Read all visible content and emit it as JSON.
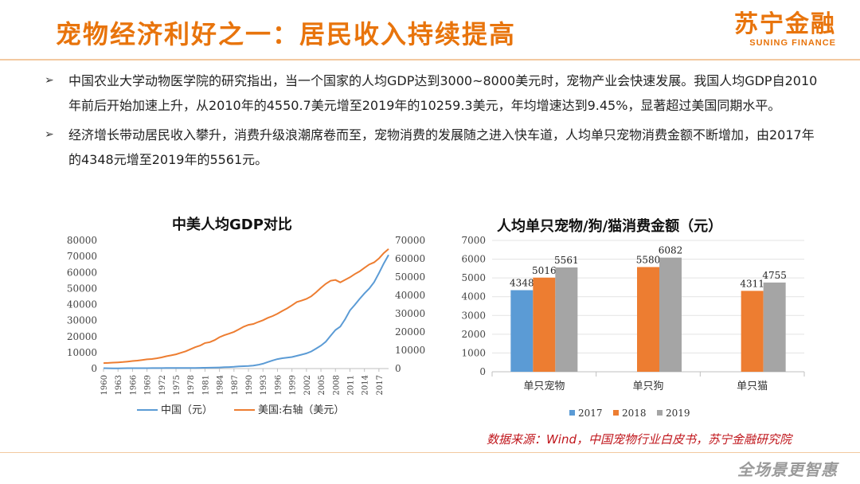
{
  "header": {
    "title": "宠物经济利好之一：居民收入持续提高",
    "logo_cn": "苏宁金融",
    "logo_en": "SUNING FINANCE"
  },
  "bullets": [
    "中国农业大学动物医学院的研究指出，当一个国家的人均GDP达到3000~8000美元时，宠物产业会快速发展。我国人均GDP自2010年前后开始加速上升，从2010年的4550.7美元增至2019年的10259.3美元，年均增速达到9.45%，显著超过美国同期水平。",
    "经济增长带动居民收入攀升，消费升级浪潮席卷而至，宠物消费的发展随之进入快车道，人均单只宠物消费金额不断增加，由2017年的4348元增至2019年的5561元。"
  ],
  "bullet_mark": "➢",
  "source": "数据来源：Wind，中国宠物行业白皮书，苏宁金融研究院",
  "slogan": "全场景更智惠",
  "chart_data": [
    {
      "type": "line",
      "title": "中美人均GDP对比",
      "x": [
        1960,
        1961,
        1962,
        1963,
        1964,
        1965,
        1966,
        1967,
        1968,
        1969,
        1970,
        1971,
        1972,
        1973,
        1974,
        1975,
        1976,
        1977,
        1978,
        1979,
        1980,
        1981,
        1982,
        1983,
        1984,
        1985,
        1986,
        1987,
        1988,
        1989,
        1990,
        1991,
        1992,
        1993,
        1994,
        1995,
        1996,
        1997,
        1998,
        1999,
        2000,
        2001,
        2002,
        2003,
        2004,
        2005,
        2006,
        2007,
        2008,
        2009,
        2010,
        2011,
        2012,
        2013,
        2014,
        2015,
        2016,
        2017,
        2018,
        2019
      ],
      "x_tick_labels": [
        "1960",
        "1963",
        "1966",
        "1969",
        "1972",
        "1975",
        "1978",
        "1981",
        "1984",
        "1987",
        "1990",
        "1993",
        "1996",
        "1999",
        "2002",
        "2005",
        "2008",
        "2011",
        "2014",
        "2017"
      ],
      "y_left_ticks": [
        0,
        10000,
        20000,
        30000,
        40000,
        50000,
        60000,
        70000,
        80000
      ],
      "y_right_ticks": [
        0,
        10000,
        20000,
        30000,
        40000,
        50000,
        60000,
        70000
      ],
      "ylim_left": [
        0,
        80000
      ],
      "ylim_right": [
        0,
        70000
      ],
      "series": [
        {
          "name": "中国（元）",
          "axis": "left",
          "color": "#5b9bd5",
          "values": [
            230,
            210,
            160,
            170,
            200,
            230,
            260,
            240,
            230,
            240,
            280,
            290,
            300,
            350,
            350,
            380,
            360,
            390,
            390,
            420,
            470,
            490,
            530,
            600,
            690,
            860,
            960,
            1110,
            1370,
            1510,
            1660,
            1910,
            2330,
            3030,
            4070,
            5090,
            5900,
            6480,
            6800,
            7200,
            7940,
            8720,
            9500,
            10670,
            12490,
            14370,
            16740,
            20500,
            24100,
            26180,
            30810,
            36300,
            39770,
            43500,
            46900,
            49920,
            53900,
            59590,
            65530,
            70890
          ]
        },
        {
          "name": "美国:右轴（美元）",
          "axis": "right",
          "color": "#ed7d31",
          "values": [
            3007,
            3067,
            3244,
            3375,
            3574,
            3828,
            4147,
            4336,
            4696,
            5032,
            5234,
            5609,
            6094,
            6726,
            7226,
            7801,
            8592,
            9453,
            10565,
            11674,
            12575,
            13976,
            14434,
            15544,
            17121,
            18237,
            19071,
            20039,
            21417,
            22857,
            23889,
            24342,
            25419,
            26387,
            27695,
            28691,
            29968,
            31459,
            32854,
            34516,
            36335,
            37133,
            38023,
            39497,
            41713,
            44115,
            46299,
            47976,
            48383,
            47100,
            48467,
            49883,
            51603,
            53107,
            55050,
            56863,
            58021,
            60110,
            63064,
            65298
          ]
        }
      ],
      "legend_position": "bottom"
    },
    {
      "type": "bar",
      "title": "人均单只宠物/狗/猫消费金额（元）",
      "categories": [
        "单只宠物",
        "单只狗",
        "单只猫"
      ],
      "y_ticks": [
        0,
        1000,
        2000,
        3000,
        4000,
        5000,
        6000,
        7000
      ],
      "ylim": [
        0,
        7000
      ],
      "series": [
        {
          "name": "2017",
          "color": "#5b9bd5",
          "values": [
            4348,
            null,
            null
          ],
          "labels": [
            "4348",
            "",
            ""
          ]
        },
        {
          "name": "2018",
          "color": "#ed7d31",
          "values": [
            5016,
            5580,
            4311
          ],
          "labels": [
            "5016",
            "5580",
            "4311"
          ]
        },
        {
          "name": "2019",
          "color": "#a5a5a5",
          "values": [
            5561,
            6082,
            4755
          ],
          "labels": [
            "5561",
            "6082",
            "4755"
          ]
        }
      ],
      "legend_position": "bottom"
    }
  ]
}
